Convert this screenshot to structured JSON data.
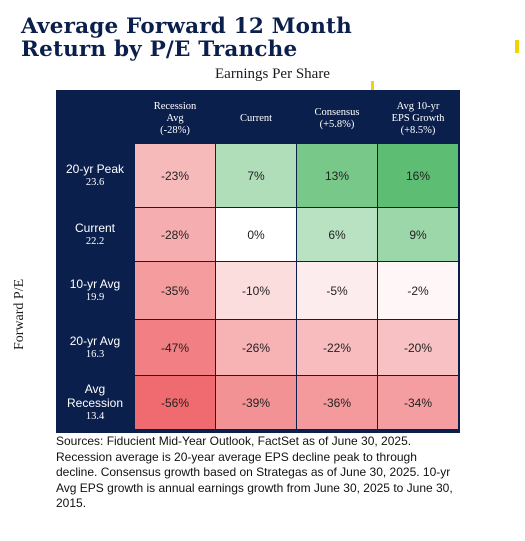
{
  "title": {
    "line1": "Average Forward 12 Month",
    "line2": "Return by P/E Tranche"
  },
  "chart_data": {
    "type": "heatmap",
    "column_group_label": "Earnings Per Share",
    "row_group_label": "Forward P/E",
    "columns": [
      "Recession\nAvg\n(-28%)",
      "Current",
      "Consensus\n(+5.8%)",
      "Avg 10-yr\nEPS Growth\n(+8.5%)"
    ],
    "rows": [
      {
        "label": "20-yr Peak",
        "value": "23.6"
      },
      {
        "label": "Current",
        "value": "22.2"
      },
      {
        "label": "10-yr Avg",
        "value": "19.9"
      },
      {
        "label": "20-yr Avg",
        "value": "16.3"
      },
      {
        "label": "Avg\nRecession",
        "value": "13.4"
      }
    ],
    "values": [
      [
        -23,
        7,
        13,
        16
      ],
      [
        -28,
        0,
        6,
        9
      ],
      [
        -35,
        -10,
        -5,
        -2
      ],
      [
        -47,
        -26,
        -22,
        -20
      ],
      [
        -56,
        -39,
        -36,
        -34
      ]
    ],
    "display_values": [
      [
        "-23%",
        "7%",
        "13%",
        "16%"
      ],
      [
        "-28%",
        "0%",
        "6%",
        "9%"
      ],
      [
        "-35%",
        "-10%",
        "-5%",
        "-2%"
      ],
      [
        "-47%",
        "-26%",
        "-22%",
        "-20%"
      ],
      [
        "-56%",
        "-39%",
        "-36%",
        "-34%"
      ]
    ],
    "color_scale": {
      "negative_max": "#ef6b6f",
      "neutral": "#ffffff",
      "positive_max": "#5dbd72"
    }
  },
  "colors": {
    "panel": "#0b1f4d",
    "accent": "#f2d200"
  },
  "sources": "Sources: Fiducient Mid-Year Outlook, FactSet as of June 30, 2025. Recession average is 20-year average EPS decline peak to through decline. Consensus growth based on Strategas as of June 30, 2025. 10-yr Avg EPS growth is annual earnings growth from June 30, 2025 to June 30, 2015."
}
